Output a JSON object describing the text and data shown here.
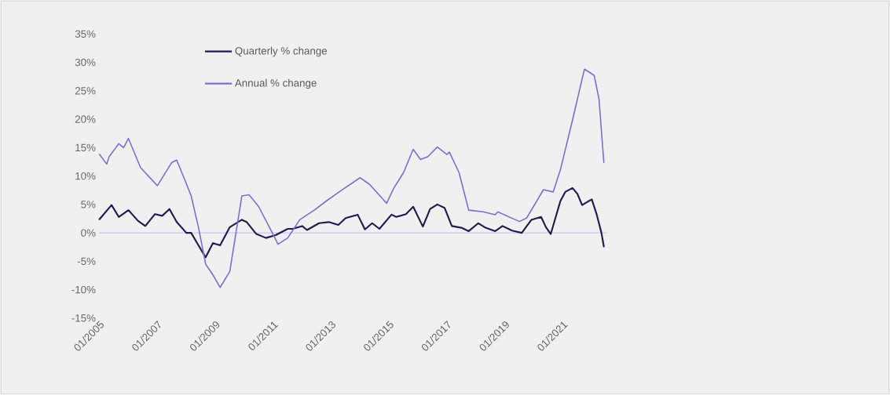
{
  "chart_data": {
    "type": "line",
    "xlim": [
      "2005-01",
      "2022-07"
    ],
    "ylim": [
      -15,
      35
    ],
    "xticks": [
      {
        "value": "2005-01",
        "label": "01/2005"
      },
      {
        "value": "2007-01",
        "label": "01/2007"
      },
      {
        "value": "2009-01",
        "label": "01/2009"
      },
      {
        "value": "2011-01",
        "label": "01/2011"
      },
      {
        "value": "2013-01",
        "label": "01/2013"
      },
      {
        "value": "2015-01",
        "label": "01/2015"
      },
      {
        "value": "2017-01",
        "label": "01/2017"
      },
      {
        "value": "2019-01",
        "label": "01/2019"
      },
      {
        "value": "2021-01",
        "label": "01/2021"
      }
    ],
    "yticks": [
      {
        "value": -15,
        "label": "-15%"
      },
      {
        "value": -10,
        "label": "-10%"
      },
      {
        "value": -5,
        "label": "-5%"
      },
      {
        "value": 0,
        "label": "0%"
      },
      {
        "value": 5,
        "label": "5%"
      },
      {
        "value": 10,
        "label": "10%"
      },
      {
        "value": 15,
        "label": "15%"
      },
      {
        "value": 20,
        "label": "20%"
      },
      {
        "value": 25,
        "label": "25%"
      },
      {
        "value": 30,
        "label": "30%"
      },
      {
        "value": 35,
        "label": "35%"
      }
    ],
    "grid": false,
    "ref_lines": [
      {
        "axis": "y",
        "value": 0,
        "color": "#c8c8f0"
      }
    ],
    "legend": "top left",
    "series": [
      {
        "name": "Quarterly % change",
        "color": "#1f1b4d",
        "x": [
          "2005-01",
          "2005-06",
          "2005-09",
          "2006-01",
          "2006-05",
          "2006-08",
          "2006-12",
          "2007-03",
          "2007-06",
          "2007-09",
          "2008-01",
          "2008-03",
          "2008-06",
          "2008-09",
          "2008-12",
          "2009-03",
          "2009-07",
          "2009-12",
          "2010-02",
          "2010-06",
          "2010-10",
          "2011-02",
          "2011-07",
          "2011-09",
          "2012-01",
          "2012-03",
          "2012-08",
          "2012-12",
          "2013-04",
          "2013-07",
          "2013-12",
          "2014-03",
          "2014-06",
          "2014-09",
          "2015-02",
          "2015-04",
          "2015-08",
          "2015-11",
          "2016-03",
          "2016-06",
          "2016-09",
          "2016-12",
          "2017-03",
          "2017-07",
          "2017-10",
          "2018-02",
          "2018-05",
          "2018-09",
          "2018-12",
          "2019-04",
          "2019-08",
          "2019-12",
          "2020-04",
          "2020-06",
          "2020-08",
          "2020-12",
          "2021-02",
          "2021-05",
          "2021-07",
          "2021-09",
          "2022-01",
          "2022-03",
          "2022-05",
          "2022-06"
        ],
        "values": [
          2.4,
          4.9,
          2.8,
          4.0,
          2.1,
          1.2,
          3.3,
          3.0,
          4.2,
          1.9,
          0.0,
          0.0,
          -2.2,
          -4.3,
          -1.8,
          -2.2,
          1.0,
          2.3,
          1.9,
          -0.2,
          -0.9,
          -0.4,
          0.7,
          0.7,
          1.2,
          0.5,
          1.7,
          1.9,
          1.4,
          2.6,
          3.2,
          0.6,
          1.7,
          0.7,
          3.2,
          2.8,
          3.3,
          4.6,
          1.1,
          4.2,
          5.0,
          4.4,
          1.2,
          0.9,
          0.3,
          1.7,
          0.9,
          0.3,
          1.2,
          0.4,
          0.0,
          2.3,
          2.8,
          1.0,
          -0.2,
          5.6,
          7.2,
          7.9,
          6.9,
          4.9,
          5.9,
          3.3,
          0.0,
          -2.4
        ]
      },
      {
        "name": "Annual % change",
        "color": "#7b6fd0",
        "x": [
          "2005-01",
          "2005-04",
          "2005-05",
          "2005-09",
          "2005-11",
          "2006-01",
          "2006-06",
          "2006-11",
          "2007-01",
          "2007-07",
          "2007-09",
          "2007-12",
          "2008-03",
          "2008-06",
          "2008-09",
          "2008-12",
          "2009-03",
          "2009-07",
          "2009-12",
          "2010-03",
          "2010-07",
          "2010-12",
          "2011-03",
          "2011-07",
          "2011-12",
          "2012-06",
          "2012-11",
          "2013-05",
          "2014-01",
          "2014-05",
          "2014-12",
          "2015-03",
          "2015-07",
          "2015-11",
          "2016-02",
          "2016-05",
          "2016-09",
          "2017-01",
          "2017-02",
          "2017-06",
          "2017-10",
          "2018-04",
          "2018-09",
          "2018-10",
          "2019-07",
          "2019-10",
          "2020-05",
          "2020-09",
          "2020-12",
          "2021-05",
          "2021-09",
          "2021-10",
          "2022-02",
          "2022-04",
          "2022-06"
        ],
        "values": [
          13.8,
          12.1,
          13.4,
          15.7,
          15.0,
          16.6,
          11.5,
          9.2,
          8.3,
          12.4,
          12.8,
          9.7,
          6.5,
          1.0,
          -5.5,
          -7.4,
          -9.6,
          -6.8,
          6.5,
          6.7,
          4.6,
          0.5,
          -2.0,
          -0.9,
          2.3,
          4.0,
          5.6,
          7.4,
          9.7,
          8.5,
          5.2,
          7.9,
          10.6,
          14.7,
          12.9,
          13.4,
          15.1,
          13.8,
          14.2,
          10.6,
          4.0,
          3.7,
          3.2,
          3.7,
          2.0,
          2.6,
          7.6,
          7.2,
          11.1,
          19.8,
          27.1,
          28.8,
          27.7,
          23.5,
          12.4
        ]
      }
    ]
  }
}
